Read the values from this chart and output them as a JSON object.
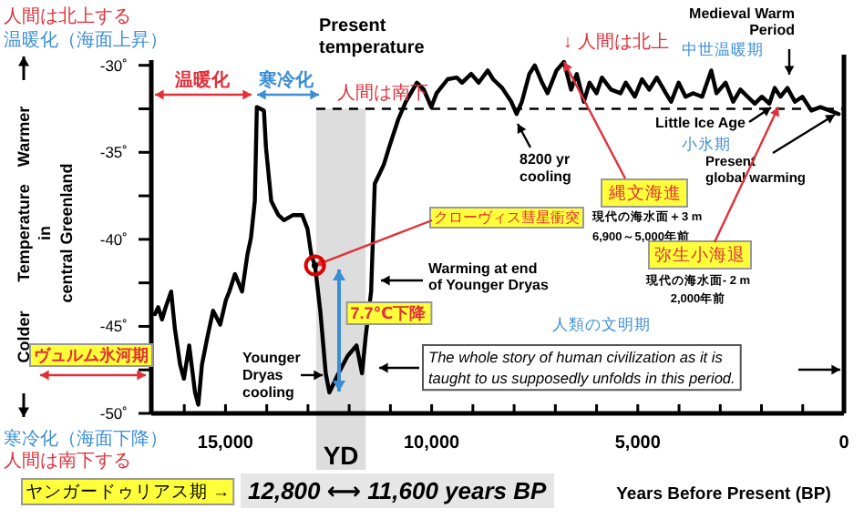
{
  "chart_data": {
    "type": "line",
    "xlabel": "Years Before Present (BP)",
    "ylabel": "Temperature in central Greenland",
    "xlim": [
      16800,
      0
    ],
    "ylim": [
      -50,
      -29.7
    ],
    "xticks": [
      {
        "value": 16000,
        "label": null
      },
      {
        "value": 15000,
        "label": "15,000"
      },
      {
        "value": 14000,
        "label": null
      },
      {
        "value": 13000,
        "label": null
      },
      {
        "value": 12000,
        "label": null
      },
      {
        "value": 11000,
        "label": null
      },
      {
        "value": 10000,
        "label": "10,000"
      },
      {
        "value": 9000,
        "label": null
      },
      {
        "value": 8000,
        "label": null
      },
      {
        "value": 7000,
        "label": null
      },
      {
        "value": 6000,
        "label": null
      },
      {
        "value": 5000,
        "label": "5,000"
      },
      {
        "value": 4000,
        "label": null
      },
      {
        "value": 3000,
        "label": null
      },
      {
        "value": 2000,
        "label": null
      },
      {
        "value": 1000,
        "label": null
      },
      0
    ],
    "yticks": [
      {
        "value": -30,
        "label": "-30˚"
      },
      {
        "value": -32.5,
        "label": null
      },
      {
        "value": -35,
        "label": "-35˚"
      },
      {
        "value": -37.5,
        "label": null
      },
      {
        "value": -40,
        "label": "-40˚"
      },
      {
        "value": -42.5,
        "label": null
      },
      {
        "value": -45,
        "label": "-45˚"
      },
      {
        "value": -47.5,
        "label": null
      },
      {
        "value": -50,
        "label": "-50˚"
      }
    ],
    "series": [
      {
        "color": "#000000",
        "x": [
          16710,
          16630,
          16540,
          16450,
          16320,
          16230,
          16100,
          16010,
          15880,
          15740,
          15660,
          15570,
          15440,
          15300,
          15130,
          14990,
          14910,
          14770,
          14600,
          14470,
          14380,
          14290,
          14240,
          14070,
          14020,
          13890,
          13720,
          13580,
          13360,
          13140,
          13010,
          12920,
          12830,
          12700,
          12570,
          12480,
          12260,
          12040,
          11820,
          11690,
          11600,
          11470,
          11380,
          11160,
          11030,
          10810,
          10630,
          10360,
          10190,
          10010,
          9880,
          9610,
          9390,
          9260,
          9040,
          8860,
          8640,
          8510,
          8290,
          8070,
          7940,
          7810,
          7630,
          7500,
          7320,
          7190,
          6970,
          6790,
          6620,
          6480,
          6310,
          6170,
          6000,
          5870,
          5650,
          5420,
          5290,
          5070,
          4900,
          4720,
          4540,
          4320,
          4190,
          4010,
          3840,
          3660,
          3440,
          3220,
          3090,
          2870,
          2690,
          2510,
          2340,
          2160,
          1990,
          1810,
          1680,
          1540,
          1370,
          1190,
          1010,
          790,
          570,
          350,
          130
        ],
        "values": [
          -44.3,
          -43.9,
          -44.6,
          -43.9,
          -43.0,
          -45.1,
          -47.2,
          -48.0,
          -46.1,
          -48.8,
          -49.5,
          -47.2,
          -45.6,
          -44.1,
          -44.9,
          -43.5,
          -43.0,
          -42.0,
          -43.0,
          -40.9,
          -39.9,
          -37.8,
          -32.4,
          -32.6,
          -34.7,
          -37.8,
          -38.6,
          -38.9,
          -38.6,
          -38.6,
          -39.4,
          -40.9,
          -41.5,
          -44.1,
          -47.7,
          -48.8,
          -47.7,
          -46.7,
          -46.1,
          -47.7,
          -45.6,
          -43.0,
          -36.8,
          -35.7,
          -34.7,
          -33.1,
          -32.1,
          -31.0,
          -31.4,
          -32.4,
          -31.6,
          -30.8,
          -30.7,
          -31.0,
          -30.5,
          -31.0,
          -30.3,
          -30.8,
          -31.3,
          -32.1,
          -32.8,
          -32.1,
          -30.5,
          -30.0,
          -31.0,
          -31.6,
          -30.3,
          -29.8,
          -31.4,
          -30.5,
          -32.1,
          -31.0,
          -31.6,
          -30.7,
          -31.4,
          -31.6,
          -31.0,
          -31.8,
          -30.8,
          -31.4,
          -30.7,
          -31.6,
          -32.1,
          -31.0,
          -31.8,
          -31.6,
          -31.8,
          -30.3,
          -31.6,
          -31.0,
          -32.1,
          -31.4,
          -31.8,
          -32.2,
          -31.8,
          -32.2,
          -31.3,
          -31.8,
          -31.3,
          -32.1,
          -31.8,
          -32.6,
          -32.4,
          -32.6,
          -32.8
        ]
      }
    ],
    "ref_lines": [
      {
        "axis": "y",
        "value": -32.5,
        "label": "Present temperature",
        "line_style": "dashed"
      }
    ],
    "bands": [
      {
        "axis": "x",
        "from": 12800,
        "to": 11600,
        "label": "YD",
        "color": "#dddddd"
      }
    ],
    "annotations": [
      "人間は北上する",
      "温暖化（海面上昇）",
      "Warmer",
      "Colder",
      "寒冷化（海面下降）",
      "人間は南下する",
      "温暖化",
      "寒冷化",
      "人間は南下",
      "↓ 人間は北上",
      "中世温暖期",
      "Medieval Warm Period",
      "8200 yr cooling",
      "Little Ice Age",
      "小氷期",
      "Present global warming",
      {
        "text": "縄文海進",
        "x": 6790,
        "y": -29.8
      },
      "現代の海水面＋3 m",
      "6,900～5,000年前",
      {
        "text": "弥生小海退",
        "x": 1590,
        "y": -32.4
      },
      "現代の海水面- 2 m",
      "2,000年前",
      {
        "text": "クローヴィス彗星衝突",
        "x": 12830,
        "y": -41.5
      },
      "Warming at end of Younger Dryas",
      "7.7℃下降",
      "ヴュルム氷河期",
      "Younger Dryas cooling",
      "人類の文明期",
      "The whole story of human civilization as it is taught to us supposedly unfolds in this period.",
      "ヤンガードゥリアス期 →",
      "12,800 ⟷ 11,600 years BP"
    ]
  }
}
